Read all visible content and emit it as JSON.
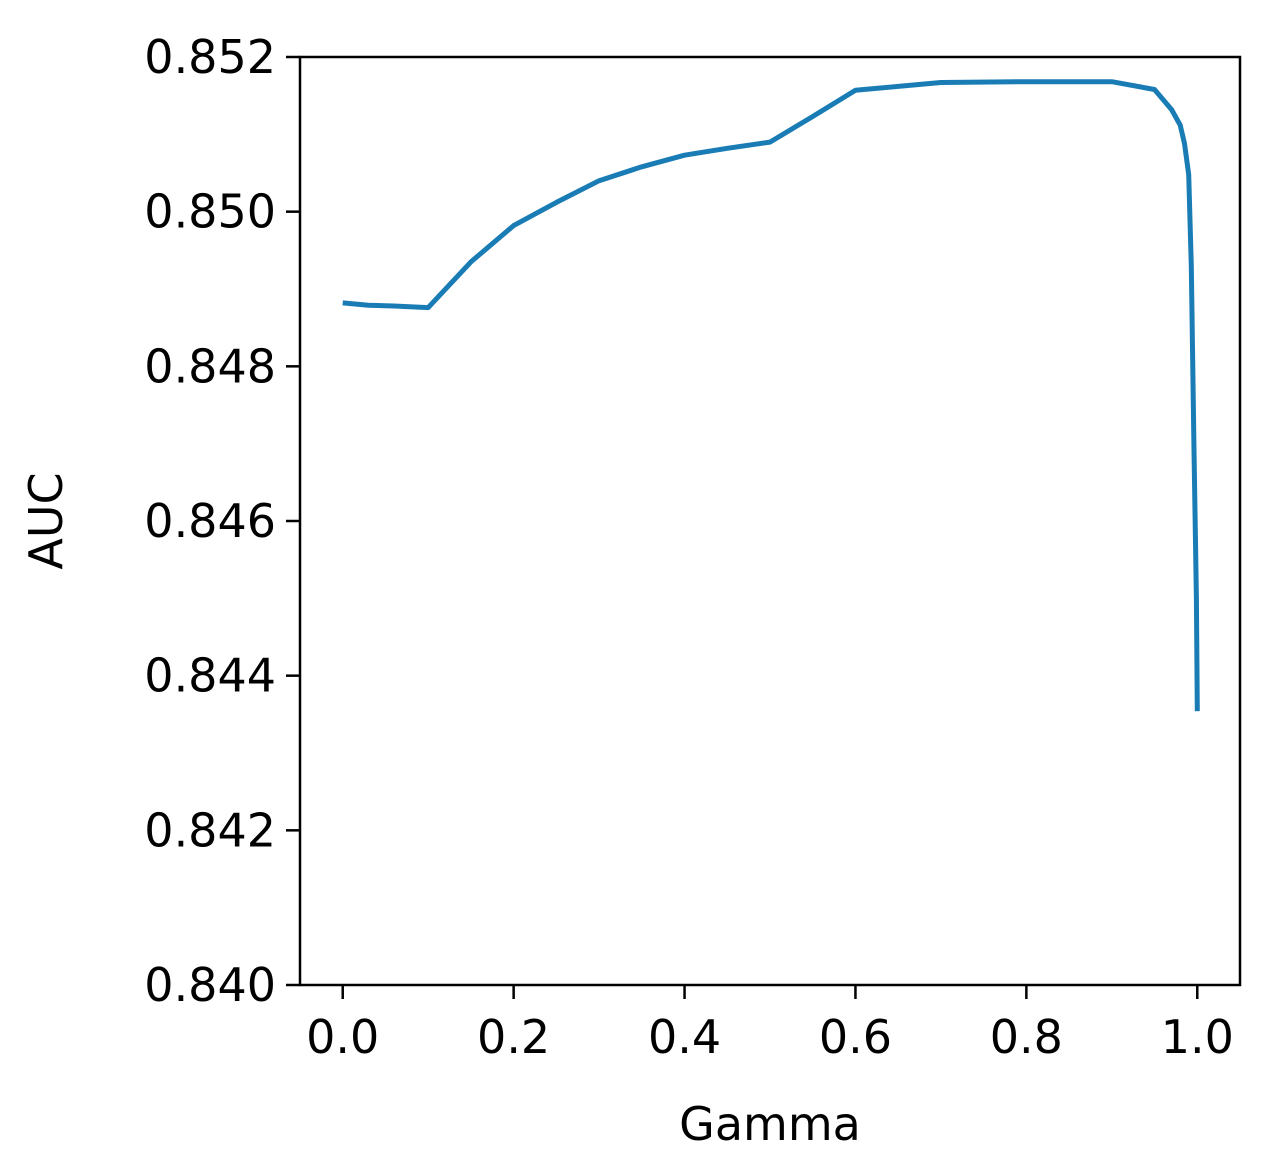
{
  "chart_data": {
    "type": "line",
    "xlabel": "Gamma",
    "ylabel": "AUC",
    "xlim": [
      -0.05,
      1.05
    ],
    "ylim": [
      0.84,
      0.852
    ],
    "xticks": [
      "0.0",
      "0.2",
      "0.4",
      "0.6",
      "0.8",
      "1.0"
    ],
    "yticks": [
      "0.840",
      "0.842",
      "0.844",
      "0.846",
      "0.848",
      "0.850",
      "0.852"
    ],
    "grid": false,
    "legend": "none",
    "series": [
      {
        "color": "#1a7cb5",
        "x": [
          0.0,
          0.03,
          0.06,
          0.1,
          0.15,
          0.2,
          0.25,
          0.3,
          0.35,
          0.4,
          0.45,
          0.5,
          0.55,
          0.6,
          0.65,
          0.7,
          0.8,
          0.9,
          0.95,
          0.97,
          0.98,
          0.985,
          0.99,
          0.993,
          0.996,
          0.999,
          1.0
        ],
        "y": [
          0.84882,
          0.84879,
          0.84878,
          0.84876,
          0.84935,
          0.84982,
          0.85012,
          0.8504,
          0.85058,
          0.85073,
          0.85082,
          0.8509,
          0.85123,
          0.85157,
          0.85162,
          0.85167,
          0.85168,
          0.85168,
          0.85158,
          0.85132,
          0.85112,
          0.85088,
          0.85048,
          0.8493,
          0.847,
          0.845,
          0.84354
        ]
      }
    ]
  }
}
